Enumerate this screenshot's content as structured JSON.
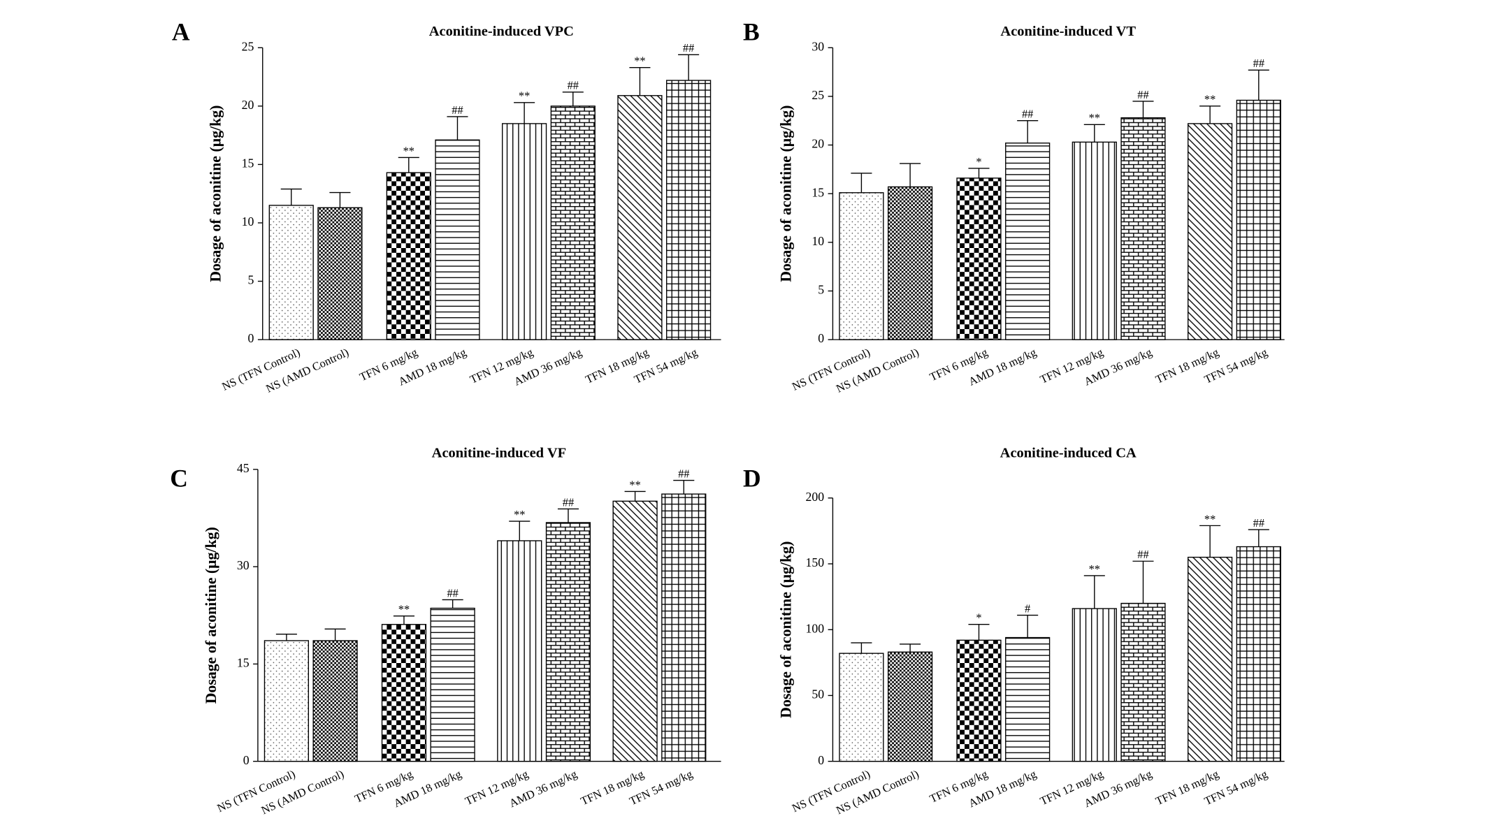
{
  "chart_data": [
    {
      "type": "bar",
      "panel": "A",
      "title": "Aconitine-induced VPC",
      "ylabel": "Dosage of aconitine (μg/kg)",
      "categories": [
        "NS (TFN Control)",
        "NS (AMD Control)",
        "TFN 6 mg/kg",
        "AMD 18 mg/kg",
        "TFN 12 mg/kg",
        "AMD 36 mg/kg",
        "TFN 18 mg/kg",
        "TFN 54 mg/kg"
      ],
      "values": [
        11.5,
        11.3,
        14.3,
        17.1,
        18.5,
        20.0,
        20.9,
        22.2
      ],
      "errors": [
        1.4,
        1.3,
        1.3,
        2.0,
        1.8,
        1.2,
        2.4,
        2.2
      ],
      "annotations": [
        null,
        null,
        "**",
        "##",
        "**",
        "##",
        "**",
        "##"
      ],
      "ylim": [
        0,
        25
      ],
      "yticks": [
        0,
        5,
        10,
        15,
        20,
        25
      ]
    },
    {
      "type": "bar",
      "panel": "B",
      "title": "Aconitine-induced VT",
      "ylabel": "Dosage of aconitine (μg/kg)",
      "categories": [
        "NS (TFN Control)",
        "NS (AMD Control)",
        "TFN 6 mg/kg",
        "AMD 18 mg/kg",
        "TFN 12 mg/kg",
        "AMD 36 mg/kg",
        "TFN 18 mg/kg",
        "TFN 54 mg/kg"
      ],
      "values": [
        15.1,
        15.7,
        16.6,
        20.2,
        20.3,
        22.8,
        22.2,
        24.6
      ],
      "errors": [
        2.0,
        2.4,
        1.0,
        2.3,
        1.8,
        1.7,
        1.8,
        3.1
      ],
      "annotations": [
        null,
        null,
        "*",
        "##",
        "**",
        "##",
        "**",
        "##"
      ],
      "ylim": [
        0,
        30
      ],
      "yticks": [
        0,
        5,
        10,
        15,
        20,
        25,
        30
      ]
    },
    {
      "type": "bar",
      "panel": "C",
      "title": "Aconitine-induced VF",
      "ylabel": "Dosage of aconitine (μg/kg)",
      "categories": [
        "NS (TFN Control)",
        "NS (AMD Control)",
        "TFN 6 mg/kg",
        "AMD 18 mg/kg",
        "TFN 12 mg/kg",
        "AMD 36 mg/kg",
        "TFN 18 mg/kg",
        "TFN 54 mg/kg"
      ],
      "values": [
        18.6,
        18.6,
        21.1,
        23.6,
        34.0,
        36.8,
        40.1,
        41.2
      ],
      "errors": [
        1.0,
        1.8,
        1.3,
        1.3,
        3.0,
        2.1,
        1.5,
        2.1
      ],
      "annotations": [
        null,
        null,
        "**",
        "##",
        "**",
        "##",
        "**",
        "##"
      ],
      "ylim": [
        0,
        45
      ],
      "yticks": [
        0,
        15,
        30,
        45
      ]
    },
    {
      "type": "bar",
      "panel": "D",
      "title": "Aconitine-induced CA",
      "ylabel": "Dosage of aconitine (μg/kg)",
      "categories": [
        "NS (TFN Control)",
        "NS (AMD Control)",
        "TFN 6 mg/kg",
        "AMD 18 mg/kg",
        "TFN 12 mg/kg",
        "AMD 36 mg/kg",
        "TFN 18 mg/kg",
        "TFN 54 mg/kg"
      ],
      "values": [
        82,
        83,
        92,
        94,
        116,
        120,
        155,
        163
      ],
      "errors": [
        8,
        6,
        12,
        17,
        25,
        32,
        24,
        13
      ],
      "annotations": [
        null,
        null,
        "*",
        "#",
        "**",
        "##",
        "**",
        "##"
      ],
      "ylim": [
        0,
        200
      ],
      "yticks": [
        0,
        50,
        100,
        150,
        200
      ]
    }
  ]
}
